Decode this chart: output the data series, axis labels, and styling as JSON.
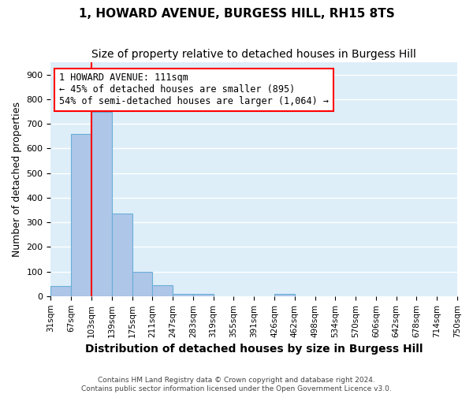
{
  "title": "1, HOWARD AVENUE, BURGESS HILL, RH15 8TS",
  "subtitle": "Size of property relative to detached houses in Burgess Hill",
  "xlabel": "Distribution of detached houses by size in Burgess Hill",
  "ylabel": "Number of detached properties",
  "footer_line1": "Contains HM Land Registry data © Crown copyright and database right 2024.",
  "footer_line2": "Contains public sector information licensed under the Open Government Licence v3.0.",
  "bin_labels": [
    "31sqm",
    "67sqm",
    "103sqm",
    "139sqm",
    "175sqm",
    "211sqm",
    "247sqm",
    "283sqm",
    "319sqm",
    "355sqm",
    "391sqm",
    "426sqm",
    "462sqm",
    "498sqm",
    "534sqm",
    "570sqm",
    "606sqm",
    "642sqm",
    "678sqm",
    "714sqm",
    "750sqm"
  ],
  "bar_heights": [
    40,
    660,
    750,
    335,
    100,
    45,
    10,
    10,
    0,
    0,
    0,
    10,
    0,
    0,
    0,
    0,
    0,
    0,
    0,
    0
  ],
  "bar_color": "#aec6e8",
  "bar_edgecolor": "#6aaed6",
  "vline_x": 2.0,
  "vline_color": "red",
  "annotation_text": "1 HOWARD AVENUE: 111sqm\n← 45% of detached houses are smaller (895)\n54% of semi-detached houses are larger (1,064) →",
  "annotation_box_color": "white",
  "annotation_box_edgecolor": "red",
  "annotation_fontsize": 8.5,
  "ylim": [
    0,
    950
  ],
  "yticks": [
    0,
    100,
    200,
    300,
    400,
    500,
    600,
    700,
    800,
    900
  ],
  "background_color": "#ddeef9",
  "grid_color": "white",
  "title_fontsize": 11,
  "subtitle_fontsize": 10,
  "xlabel_fontsize": 10,
  "ylabel_fontsize": 9
}
